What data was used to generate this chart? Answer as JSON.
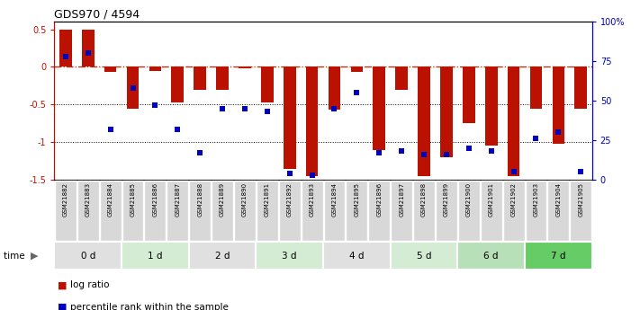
{
  "title": "GDS970 / 4594",
  "samples": [
    "GSM21882",
    "GSM21883",
    "GSM21884",
    "GSM21885",
    "GSM21886",
    "GSM21887",
    "GSM21888",
    "GSM21889",
    "GSM21890",
    "GSM21891",
    "GSM21892",
    "GSM21893",
    "GSM21894",
    "GSM21895",
    "GSM21896",
    "GSM21897",
    "GSM21898",
    "GSM21899",
    "GSM21900",
    "GSM21901",
    "GSM21902",
    "GSM21903",
    "GSM21904",
    "GSM21905"
  ],
  "log_ratio": [
    0.5,
    0.5,
    -0.07,
    -0.55,
    -0.05,
    -0.47,
    -0.3,
    -0.3,
    -0.02,
    -0.47,
    -1.35,
    -1.45,
    -0.57,
    -0.07,
    -1.1,
    -0.3,
    -1.45,
    -1.2,
    -0.75,
    -1.05,
    -1.45,
    -0.55,
    -1.02,
    -0.55
  ],
  "percentile_rank": [
    78,
    80,
    32,
    58,
    47,
    32,
    17,
    45,
    45,
    43,
    4,
    3,
    45,
    55,
    17,
    18,
    16,
    16,
    20,
    18,
    5,
    26,
    30,
    5
  ],
  "time_groups": [
    {
      "label": "0 d",
      "start": 0,
      "end": 3,
      "color": "#e0e0e0"
    },
    {
      "label": "1 d",
      "start": 3,
      "end": 6,
      "color": "#d4ecd4"
    },
    {
      "label": "2 d",
      "start": 6,
      "end": 9,
      "color": "#e0e0e0"
    },
    {
      "label": "3 d",
      "start": 9,
      "end": 12,
      "color": "#d4ecd4"
    },
    {
      "label": "4 d",
      "start": 12,
      "end": 15,
      "color": "#e0e0e0"
    },
    {
      "label": "5 d",
      "start": 15,
      "end": 18,
      "color": "#d4ecd4"
    },
    {
      "label": "6 d",
      "start": 18,
      "end": 21,
      "color": "#b8e0b8"
    },
    {
      "label": "7 d",
      "start": 21,
      "end": 24,
      "color": "#66cc66"
    }
  ],
  "ylim_left": [
    -1.5,
    0.6
  ],
  "ylim_right": [
    0,
    100
  ],
  "bar_color": "#bb1100",
  "dot_color": "#0000bb",
  "hline_color": "#cc2200",
  "dotted_levels": [
    -0.5,
    -1.0
  ],
  "legend_bar_label": "log ratio",
  "legend_dot_label": "percentile rank within the sample",
  "right_yticks": [
    0,
    25,
    50,
    75,
    100
  ],
  "right_yticklabels": [
    "0",
    "25",
    "50",
    "75",
    "100%"
  ],
  "left_yticks": [
    -1.5,
    -1.0,
    -0.5,
    0.0,
    0.5
  ],
  "left_yticklabels": [
    "-1.5",
    "-1",
    "-0.5",
    "0",
    "0.5"
  ]
}
